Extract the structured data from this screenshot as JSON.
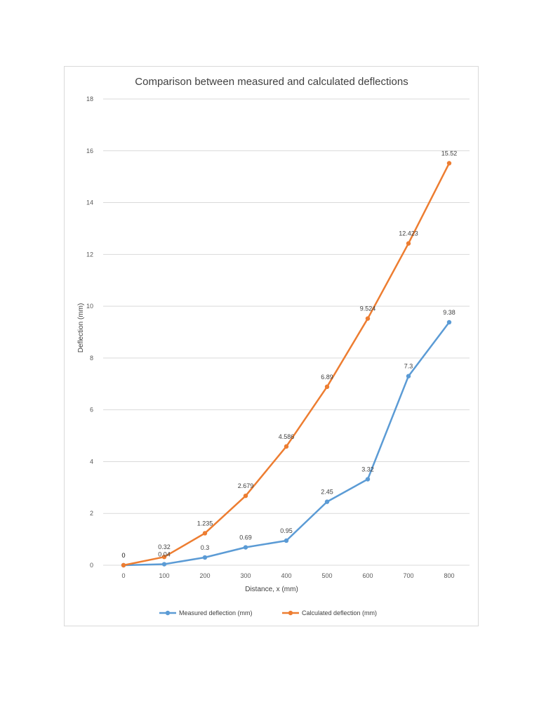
{
  "chart_data": {
    "type": "line",
    "title": "Comparison between measured and calculated deflections",
    "xlabel": "Distance, x (mm)",
    "ylabel": "Deflection (mm)",
    "x": [
      0,
      100,
      200,
      300,
      400,
      500,
      600,
      700,
      800
    ],
    "x_tick_labels": [
      "0",
      "100",
      "200",
      "300",
      "400",
      "500",
      "600",
      "700",
      "800"
    ],
    "ylim": [
      0,
      18
    ],
    "y_ticks": [
      0,
      2,
      4,
      6,
      8,
      10,
      12,
      14,
      16,
      18
    ],
    "y_tick_labels": [
      "0",
      "2",
      "4",
      "6",
      "8",
      "10",
      "12",
      "14",
      "16",
      "18"
    ],
    "grid": true,
    "legend_position": "bottom",
    "series": [
      {
        "name": "Measured deflection (mm)",
        "color": "#5b9bd5",
        "values": [
          0,
          0.04,
          0.3,
          0.69,
          0.95,
          2.45,
          3.32,
          7.3,
          9.38
        ],
        "labels": [
          "0",
          "0.04",
          "0.3",
          "0.69",
          "0.95",
          "2.45",
          "3.32",
          "7.3",
          "9.38"
        ]
      },
      {
        "name": "Calculated deflection (mm)",
        "color": "#ed7d31",
        "values": [
          0,
          0.32,
          1.235,
          2.679,
          4.586,
          6.89,
          9.524,
          12.423,
          15.52
        ],
        "labels": [
          "0",
          "0.32",
          "1.235",
          "2.679",
          "4.586",
          "6.89",
          "9.524",
          "12.423",
          "15.52"
        ]
      }
    ]
  }
}
